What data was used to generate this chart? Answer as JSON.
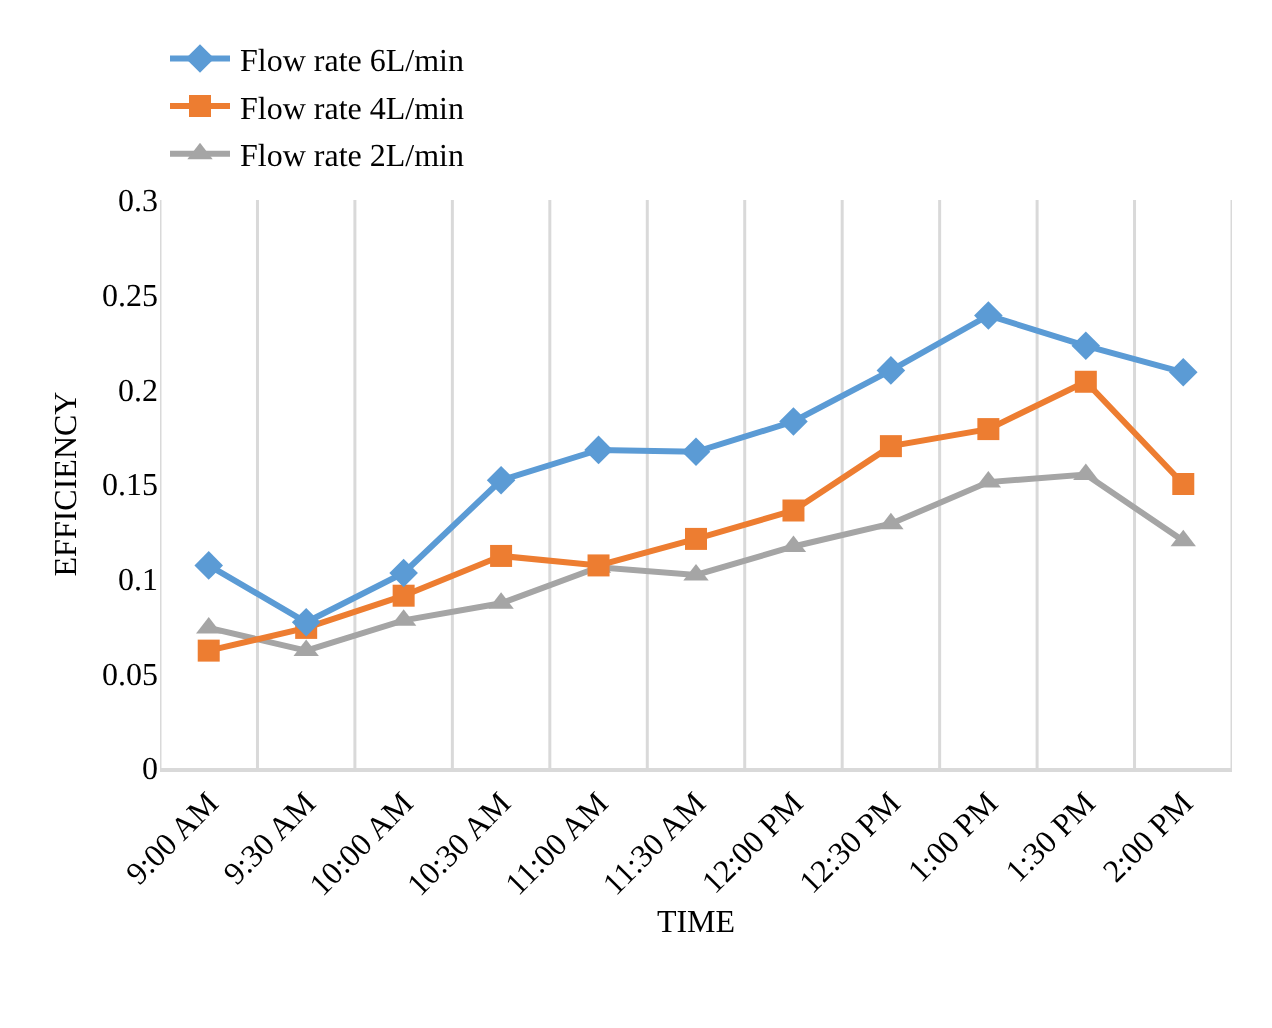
{
  "chart_data": {
    "type": "line",
    "xlabel": "TIME",
    "ylabel": "EFFICIENCY",
    "categories": [
      "9:00 AM",
      "9:30 AM",
      "10:00 AM",
      "10:30 AM",
      "11:00 AM",
      "11:30 AM",
      "12:00 PM",
      "12:30 PM",
      "1:00 PM",
      "1:30 PM",
      "2:00 PM"
    ],
    "series": [
      {
        "name": "Flow rate 6L/min",
        "color": "#5b9bd5",
        "marker": "diamond",
        "values": [
          0.107,
          0.077,
          0.103,
          0.152,
          0.168,
          0.167,
          0.183,
          0.21,
          0.239,
          0.223,
          0.209
        ]
      },
      {
        "name": "Flow rate 4L/min",
        "color": "#ed7d31",
        "marker": "square",
        "values": [
          0.062,
          0.074,
          0.091,
          0.112,
          0.107,
          0.121,
          0.136,
          0.17,
          0.179,
          0.204,
          0.15
        ]
      },
      {
        "name": "Flow rate 2L/min",
        "color": "#a5a5a5",
        "marker": "triangle",
        "values": [
          0.074,
          0.062,
          0.078,
          0.087,
          0.106,
          0.102,
          0.117,
          0.129,
          0.151,
          0.155,
          0.12
        ]
      }
    ],
    "ylim": [
      0,
      0.3
    ],
    "yticks": [
      0,
      0.05,
      0.1,
      0.15,
      0.2,
      0.25,
      0.3
    ],
    "grid": "x",
    "legend": "top",
    "line_style": "solid"
  }
}
